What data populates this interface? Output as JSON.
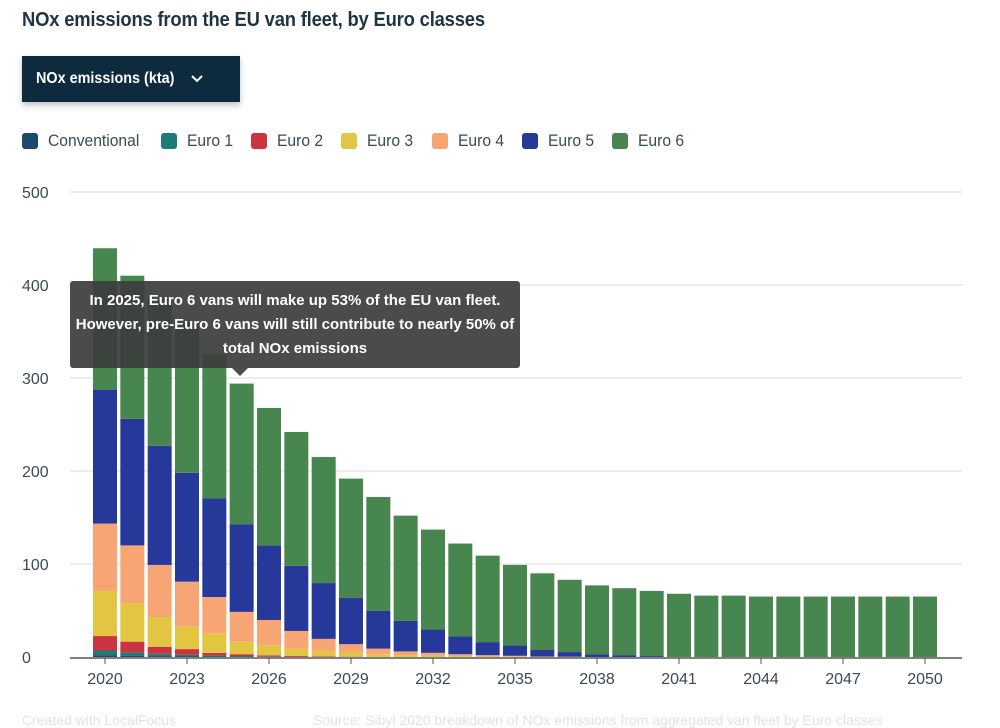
{
  "header": {
    "title": "NOx emissions from the EU van fleet, by Euro classes"
  },
  "dropdown": {
    "selected": "NOx emissions (kta)",
    "icon": "chevron-down-icon"
  },
  "footer": {
    "credit": "Created with LocalFocus",
    "source": "Source: Sibyl 2020 breakdown of NOx emissions from aggregated van fleet by Euro classes"
  },
  "chart_data": {
    "type": "bar",
    "stacked": true,
    "title": "NOx emissions from the EU van fleet, by Euro classes",
    "ylabel": "NOx emissions (kta)",
    "ylim": [
      0,
      500
    ],
    "yticks": [
      0,
      100,
      200,
      300,
      400,
      500
    ],
    "xtick_labels": [
      "2020",
      "2023",
      "2026",
      "2029",
      "2032",
      "2035",
      "2038",
      "2041",
      "2044",
      "2047",
      "2050"
    ],
    "grid": true,
    "legend_position": "top-left",
    "categories": [
      2020,
      2021,
      2022,
      2023,
      2024,
      2025,
      2026,
      2027,
      2028,
      2029,
      2030,
      2031,
      2032,
      2033,
      2034,
      2035,
      2036,
      2037,
      2038,
      2039,
      2040,
      2041,
      2042,
      2043,
      2044,
      2045,
      2046,
      2047,
      2048,
      2049,
      2050
    ],
    "series": [
      {
        "name": "Conventional",
        "color": "#1d4a68",
        "values": [
          2,
          1.5,
          1,
          1,
          0.5,
          0.5,
          0,
          0,
          0,
          0,
          0,
          0,
          0,
          0,
          0,
          0,
          0,
          0,
          0,
          0,
          0,
          0,
          0,
          0,
          0,
          0,
          0,
          0,
          0,
          0,
          0
        ]
      },
      {
        "name": "Euro 1",
        "color": "#1e7b78",
        "values": [
          5,
          3.5,
          2.5,
          1.5,
          1,
          0.5,
          0.3,
          0,
          0,
          0,
          0,
          0,
          0,
          0,
          0,
          0,
          0,
          0,
          0,
          0,
          0,
          0,
          0,
          0,
          0,
          0,
          0,
          0,
          0,
          0,
          0
        ]
      },
      {
        "name": "Euro 2",
        "color": "#cc3340",
        "values": [
          15.5,
          11.5,
          7.5,
          6,
          3,
          2,
          1.5,
          1,
          0.5,
          0.3,
          0,
          0,
          0,
          0,
          0,
          0,
          0,
          0,
          0,
          0,
          0,
          0,
          0,
          0,
          0,
          0,
          0,
          0,
          0,
          0,
          0
        ]
      },
      {
        "name": "Euro 3",
        "color": "#e2c540",
        "values": [
          49,
          41.5,
          32,
          24,
          21,
          13.5,
          11,
          8,
          6,
          4.5,
          3,
          2,
          1.5,
          1,
          0.5,
          0.3,
          0,
          0,
          0,
          0,
          0,
          0,
          0,
          0,
          0,
          0,
          0,
          0,
          0,
          0,
          0
        ]
      },
      {
        "name": "Euro 4",
        "color": "#f8a576",
        "values": [
          72,
          62,
          56,
          48.5,
          39,
          32,
          27,
          19,
          13,
          9,
          6,
          4,
          3,
          2,
          1.5,
          1,
          0.5,
          0.3,
          0,
          0,
          0,
          0,
          0,
          0,
          0,
          0,
          0,
          0,
          0,
          0,
          0
        ]
      },
      {
        "name": "Euro 5",
        "color": "#26389a",
        "values": [
          144,
          136,
          128,
          117,
          106,
          94,
          80,
          70,
          60,
          50,
          40.5,
          33,
          25,
          19,
          14,
          11,
          7,
          5,
          3,
          2,
          1,
          0,
          0,
          0,
          0,
          0,
          0,
          0,
          0,
          0,
          0
        ]
      },
      {
        "name": "Euro 6",
        "color": "#47874f",
        "values": [
          152,
          154,
          158,
          162,
          155,
          151.5,
          148,
          144,
          135.5,
          128,
          122.5,
          113,
          107.5,
          100,
          93,
          86.7,
          82.5,
          77.7,
          74,
          72,
          70,
          68,
          66,
          66,
          65,
          65,
          65,
          65,
          65,
          65,
          65
        ]
      }
    ],
    "annotation": {
      "category": 2025,
      "lines": [
        "In 2025, Euro 6 vans will make up 53% of the EU van fleet.",
        "However, pre-Euro 6 vans will still contribute to nearly 50% of",
        "total NOx emissions"
      ]
    }
  }
}
